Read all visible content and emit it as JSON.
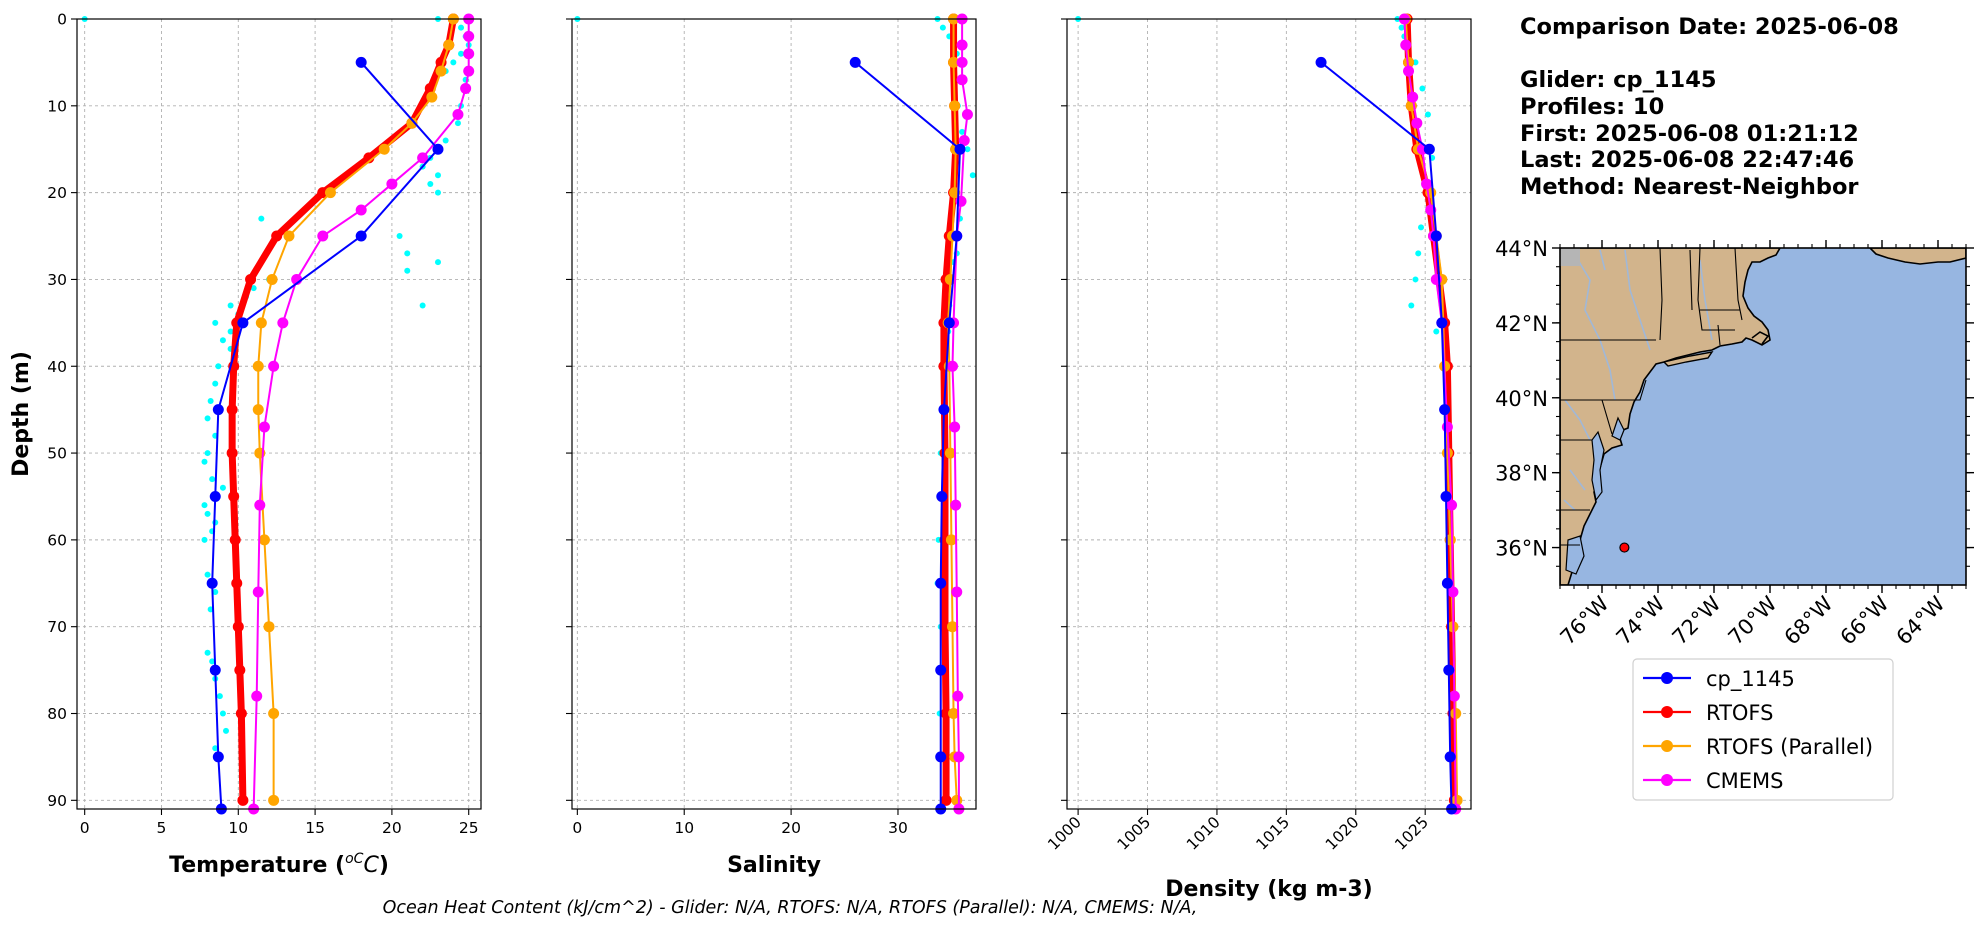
{
  "info": {
    "comparison_date": "Comparison Date: 2025-06-08",
    "glider": "Glider: cp_1145",
    "profiles": "Profiles: 10",
    "first": "First: 2025-06-08 01:21:12",
    "last": "Last: 2025-06-08 22:47:46",
    "method": "Method: Nearest-Neighbor"
  },
  "footer": "Ocean Heat Content (kJ/cm^2) - Glider: N/A,  RTOFS: N/A,  RTOFS (Parallel): N/A,  CMEMS: N/A,",
  "colors": {
    "glider": "#0000ff",
    "rtofs": "#ff0000",
    "rtofs_parallel": "#ffa500",
    "cmems": "#ff00ff",
    "glider_scatter": "#00ffff",
    "ocean": "#97b6e1",
    "land": "#d2b48c",
    "rivers": "#a0b8d8"
  },
  "chart_data": [
    {
      "type": "line",
      "xlabel": "Temperature ($^oC$)",
      "ylabel": "Depth (m)",
      "xlim": [
        -0.5,
        25.8
      ],
      "ylim": [
        91,
        0
      ],
      "xticks": [
        0,
        5,
        10,
        15,
        20,
        25
      ],
      "yticks": [
        0,
        10,
        20,
        30,
        40,
        50,
        60,
        70,
        80,
        90
      ],
      "grid": true,
      "series": [
        {
          "name": "cp_1145",
          "x": [
            18,
            23,
            18,
            10.3,
            8.7,
            8.5,
            8.3,
            8.5,
            8.7,
            8.9
          ],
          "y": [
            5,
            15,
            25,
            35,
            45,
            55,
            65,
            75,
            85,
            91
          ]
        },
        {
          "name": "RTOFS",
          "x": [
            24,
            23.7,
            23.2,
            22.5,
            21.3,
            18.5,
            15.5,
            12.5,
            10.8,
            9.9,
            9.7,
            9.6,
            9.6,
            9.7,
            9.8,
            9.9,
            10,
            10.1,
            10.2,
            10.3
          ],
          "y": [
            0,
            3,
            5,
            8,
            12,
            16,
            20,
            25,
            30,
            35,
            40,
            45,
            50,
            55,
            60,
            65,
            70,
            75,
            80,
            90
          ]
        },
        {
          "name": "RTOFS (Parallel)",
          "x": [
            24,
            23.7,
            23.2,
            22.6,
            21.3,
            19.5,
            16,
            13.3,
            12.2,
            11.5,
            11.3,
            11.3,
            11.4,
            11.7,
            12,
            12.3,
            12.3
          ],
          "y": [
            0,
            3,
            6,
            9,
            12,
            15,
            20,
            25,
            30,
            35,
            40,
            45,
            50,
            60,
            70,
            80,
            90
          ]
        },
        {
          "name": "CMEMS",
          "x": [
            25,
            25,
            25,
            25,
            24.8,
            24.3,
            22,
            20,
            18,
            15.5,
            13.8,
            12.9,
            12.3,
            11.7,
            11.4,
            11.3,
            11.2,
            11
          ],
          "y": [
            0,
            2,
            4,
            6,
            8,
            11,
            16,
            19,
            22,
            25,
            30,
            35,
            40,
            47,
            56,
            66,
            78,
            91
          ]
        }
      ],
      "scatter": {
        "name": "cp_1145 points",
        "x": [
          0,
          23,
          24,
          24.5,
          24.8,
          25,
          24.5,
          24,
          23.5,
          24.8,
          24.5,
          24.3,
          23.5,
          22.5,
          22,
          23,
          22.5,
          23,
          20.5,
          21,
          23,
          21,
          22,
          11.5,
          12,
          11,
          10.5,
          9.5,
          10,
          9.5,
          8.5,
          9,
          9.5,
          8.7,
          8.5,
          8.2,
          8,
          8.5,
          8,
          7.8,
          8.3,
          9,
          8.5,
          7.8,
          8,
          8.5,
          8.3,
          7.8,
          8,
          8.3,
          8.5,
          8.2,
          8,
          8.3,
          8.5,
          8.8,
          9,
          9.2,
          8.5
        ],
        "y": [
          0,
          0,
          0,
          1,
          2,
          3,
          4,
          5,
          6,
          7,
          10,
          12,
          14,
          16,
          17,
          18,
          19,
          20,
          25,
          27,
          28,
          29,
          33,
          23,
          30,
          31,
          32,
          33,
          34,
          36,
          35,
          37,
          38,
          40,
          42,
          44,
          46,
          48,
          50,
          51,
          53,
          54,
          55,
          56,
          57,
          58,
          59,
          60,
          64,
          65,
          66,
          68,
          73,
          74,
          76,
          78,
          80,
          82,
          84
        ]
      }
    },
    {
      "type": "line",
      "xlabel": "Salinity",
      "ylabel": "",
      "xlim": [
        -0.5,
        37.3
      ],
      "ylim": [
        91,
        0
      ],
      "xticks": [
        0,
        10,
        20,
        30
      ],
      "grid": true,
      "series": [
        {
          "name": "cp_1145",
          "x": [
            26,
            35.8,
            35.5,
            34.8,
            34.3,
            34.1,
            34.0,
            34.0,
            34.0,
            34.0
          ],
          "y": [
            5,
            15,
            25,
            35,
            45,
            55,
            65,
            75,
            85,
            91
          ]
        },
        {
          "name": "RTOFS",
          "x": [
            35.2,
            35.2,
            35.3,
            35.4,
            35.2,
            34.8,
            34.5,
            34.3,
            34.3,
            34.4,
            34.4,
            34.4,
            34.5,
            34.5
          ],
          "y": [
            0,
            5,
            10,
            15,
            20,
            25,
            30,
            35,
            40,
            50,
            60,
            70,
            80,
            90
          ]
        },
        {
          "name": "RTOFS (Parallel)",
          "x": [
            35.2,
            35.2,
            35.3,
            35.4,
            35.3,
            35.1,
            34.9,
            34.7,
            34.8,
            34.9,
            35,
            35.1,
            35.2,
            35.3,
            35.5
          ],
          "y": [
            0,
            5,
            10,
            15,
            20,
            25,
            30,
            35,
            40,
            50,
            60,
            70,
            80,
            85,
            90
          ]
        },
        {
          "name": "CMEMS",
          "x": [
            36,
            36,
            36,
            36,
            36.5,
            36.2,
            35.9,
            35.5,
            35.2,
            35.1,
            35.3,
            35.4,
            35.5,
            35.6,
            35.7,
            35.7
          ],
          "y": [
            0,
            3,
            5,
            7,
            11,
            14,
            21,
            25,
            35,
            40,
            47,
            56,
            66,
            78,
            85,
            91
          ]
        }
      ],
      "scatter": {
        "name": "cp_1145 points",
        "x": [
          0,
          33.7,
          34.2,
          34.8,
          35.2,
          35.5,
          35.7,
          35.6,
          36,
          36.5,
          37,
          36,
          35.8,
          35.5,
          35.2,
          35,
          34.8,
          34.7,
          34.5,
          34.3,
          34.1,
          34,
          33.9,
          33.8,
          33.7,
          34,
          34.2,
          33.9,
          33.8
        ],
        "y": [
          0,
          0,
          1,
          2,
          3,
          4,
          5,
          10,
          13,
          15,
          18,
          21,
          23,
          27,
          28,
          30,
          33,
          36,
          38,
          40,
          45,
          50,
          55,
          60,
          65,
          70,
          75,
          80,
          85
        ]
      }
    },
    {
      "type": "line",
      "xlabel": "Density (kg m-3)",
      "ylabel": "",
      "xlim": [
        999.2,
        1028.3
      ],
      "ylim": [
        91,
        0
      ],
      "xticks": [
        1000,
        1005,
        1010,
        1015,
        1020,
        1025
      ],
      "grid": true,
      "series": [
        {
          "name": "cp_1145",
          "x": [
            1017.5,
            1025.3,
            1025.8,
            1026.2,
            1026.4,
            1026.5,
            1026.6,
            1026.7,
            1026.8,
            1026.9
          ],
          "y": [
            5,
            15,
            25,
            35,
            45,
            55,
            65,
            75,
            85,
            91
          ]
        },
        {
          "name": "RTOFS",
          "x": [
            1023.7,
            1023.8,
            1024.0,
            1024.4,
            1025.2,
            1025.6,
            1026.0,
            1026.4,
            1026.6,
            1026.7,
            1026.8,
            1026.9,
            1027.0,
            1027.1
          ],
          "y": [
            0,
            5,
            10,
            15,
            20,
            25,
            30,
            35,
            40,
            50,
            60,
            70,
            80,
            90
          ]
        },
        {
          "name": "RTOFS (Parallel)",
          "x": [
            1023.6,
            1023.8,
            1024.0,
            1024.5,
            1025.4,
            1025.8,
            1026.2,
            1026.4,
            1026.6,
            1026.8,
            1027.0,
            1027.2,
            1027.3
          ],
          "y": [
            0,
            5,
            10,
            15,
            20,
            25,
            30,
            40,
            50,
            60,
            70,
            80,
            90
          ]
        },
        {
          "name": "CMEMS",
          "x": [
            1023.5,
            1023.6,
            1023.8,
            1024.1,
            1024.4,
            1024.8,
            1025.1,
            1025.4,
            1025.6,
            1025.8,
            1026.2,
            1026.6,
            1026.9,
            1027.0,
            1027.1,
            1027.2
          ],
          "y": [
            0,
            3,
            6,
            9,
            12,
            15,
            19,
            22,
            25,
            30,
            35,
            47,
            56,
            66,
            78,
            91
          ]
        }
      ],
      "scatter": {
        "name": "cp_1145 points",
        "x": [
          1000,
          1023,
          1023.3,
          1023.5,
          1023.8,
          1024.3,
          1024.8,
          1025.2,
          1025.5,
          1025.3,
          1024.7,
          1024.5,
          1024.3,
          1024.0,
          1025.8,
          1026.3,
          1026.6
        ],
        "y": [
          0,
          0,
          1,
          2,
          3,
          5,
          8,
          11,
          16,
          21,
          24,
          27,
          30,
          33,
          36,
          40,
          45
        ]
      }
    },
    {
      "type": "map",
      "lon_range": [
        -77.5,
        -63
      ],
      "lat_range": [
        35,
        44
      ],
      "lat_ticks": [
        "44°N",
        "42°N",
        "40°N",
        "38°N",
        "36°N"
      ],
      "lon_ticks": [
        "76°W",
        "74°W",
        "72°W",
        "70°W",
        "68°W",
        "66°W",
        "64°W"
      ],
      "marker": {
        "name": "cp_1145",
        "lon": -75.2,
        "lat": 36.0,
        "color": "#ff0000"
      }
    }
  ],
  "legend": {
    "placement": "below-map",
    "items": [
      {
        "label": "cp_1145",
        "color": "#0000ff"
      },
      {
        "label": "RTOFS",
        "color": "#ff0000"
      },
      {
        "label": "RTOFS (Parallel)",
        "color": "#ffa500"
      },
      {
        "label": "CMEMS",
        "color": "#ff00ff"
      }
    ]
  }
}
